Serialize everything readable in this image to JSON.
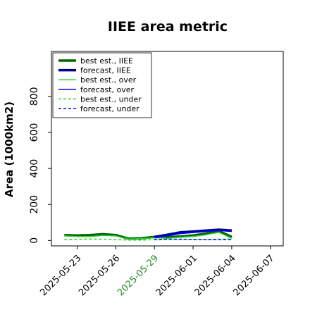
{
  "chart_data": {
    "type": "line",
    "title": "IIEE area metric",
    "xlabel": "",
    "ylabel": "Area (1000km2)",
    "y_ticks": [
      0,
      200,
      400,
      600,
      800
    ],
    "ylim": [
      -30,
      1050
    ],
    "x_ticks": [
      "2025-05-23",
      "2025-05-26",
      "2025-05-29",
      "2025-06-01",
      "2025-06-04",
      "2025-06-07"
    ],
    "xlim": [
      "2025-05-21",
      "2025-06-08"
    ],
    "highlight_tick": "2025-05-29",
    "highlight_color": "#228B22",
    "legend_position": "top-left",
    "grid": false,
    "series": [
      {
        "name": "best est., IIEE",
        "color": "#006400",
        "width": 3.5,
        "dash": "solid",
        "points": [
          [
            "2025-05-22",
            30
          ],
          [
            "2025-05-23",
            28
          ],
          [
            "2025-05-24",
            30
          ],
          [
            "2025-05-25",
            35
          ],
          [
            "2025-05-26",
            30
          ],
          [
            "2025-05-27",
            10
          ],
          [
            "2025-05-28",
            12
          ],
          [
            "2025-05-29",
            20
          ],
          [
            "2025-05-30",
            18
          ],
          [
            "2025-05-31",
            22
          ],
          [
            "2025-06-01",
            28
          ],
          [
            "2025-06-02",
            38
          ],
          [
            "2025-06-03",
            52
          ],
          [
            "2025-06-04",
            20
          ]
        ]
      },
      {
        "name": "forecast, IIEE",
        "color": "#00008B",
        "width": 3.5,
        "dash": "solid",
        "points": [
          [
            "2025-05-29",
            20
          ],
          [
            "2025-05-30",
            32
          ],
          [
            "2025-05-31",
            45
          ],
          [
            "2025-06-01",
            50
          ],
          [
            "2025-06-02",
            55
          ],
          [
            "2025-06-03",
            60
          ],
          [
            "2025-06-04",
            55
          ]
        ]
      },
      {
        "name": "best est., over",
        "color": "#32CD32",
        "width": 1.5,
        "dash": "solid",
        "points": [
          [
            "2025-05-22",
            25
          ],
          [
            "2025-05-23",
            22
          ],
          [
            "2025-05-24",
            22
          ],
          [
            "2025-05-25",
            28
          ],
          [
            "2025-05-26",
            25
          ],
          [
            "2025-05-27",
            8
          ],
          [
            "2025-05-28",
            10
          ],
          [
            "2025-05-29",
            15
          ],
          [
            "2025-05-30",
            12
          ],
          [
            "2025-05-31",
            18
          ],
          [
            "2025-06-01",
            22
          ],
          [
            "2025-06-02",
            32
          ],
          [
            "2025-06-03",
            45
          ],
          [
            "2025-06-04",
            12
          ]
        ]
      },
      {
        "name": "forecast, over",
        "color": "#0000FF",
        "width": 1.5,
        "dash": "solid",
        "points": [
          [
            "2025-05-29",
            15
          ],
          [
            "2025-05-30",
            25
          ],
          [
            "2025-05-31",
            38
          ],
          [
            "2025-06-01",
            44
          ],
          [
            "2025-06-02",
            50
          ],
          [
            "2025-06-03",
            55
          ],
          [
            "2025-06-04",
            50
          ]
        ]
      },
      {
        "name": "best est., under",
        "color": "#32CD32",
        "width": 1.5,
        "dash": "4,3",
        "points": [
          [
            "2025-05-22",
            5
          ],
          [
            "2025-05-23",
            6
          ],
          [
            "2025-05-24",
            8
          ],
          [
            "2025-05-25",
            7
          ],
          [
            "2025-05-26",
            5
          ],
          [
            "2025-05-27",
            2
          ],
          [
            "2025-05-28",
            2
          ],
          [
            "2025-05-29",
            5
          ],
          [
            "2025-05-30",
            6
          ],
          [
            "2025-05-31",
            6
          ],
          [
            "2025-06-01",
            6
          ],
          [
            "2025-06-02",
            6
          ],
          [
            "2025-06-03",
            7
          ],
          [
            "2025-06-04",
            8
          ]
        ]
      },
      {
        "name": "forecast, under",
        "color": "#0000FF",
        "width": 1.5,
        "dash": "4,3",
        "points": [
          [
            "2025-05-29",
            5
          ],
          [
            "2025-05-30",
            7
          ],
          [
            "2025-05-31",
            7
          ],
          [
            "2025-06-01",
            6
          ],
          [
            "2025-06-02",
            5
          ],
          [
            "2025-06-03",
            5
          ],
          [
            "2025-06-04",
            5
          ]
        ]
      }
    ]
  }
}
